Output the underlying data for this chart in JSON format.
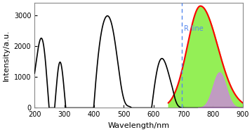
{
  "title": "",
  "xlabel": "Wavelength/nm",
  "ylabel": "Intensity/a.u.",
  "xlim": [
    200,
    900
  ],
  "ylim": [
    0,
    3400
  ],
  "yticks": [
    0,
    1000,
    2000,
    3000
  ],
  "xticks": [
    200,
    300,
    400,
    500,
    600,
    700,
    800,
    900
  ],
  "r_line_x": 696,
  "r_line_label": "R line",
  "background_color": "#ffffff",
  "excitation_color": "#000000",
  "emission_broad_color": "#88ee44",
  "emission_broad_outline_color": "#ff0000",
  "emission_sharp_color": "#cc88dd",
  "r_line_color": "#5588ee"
}
